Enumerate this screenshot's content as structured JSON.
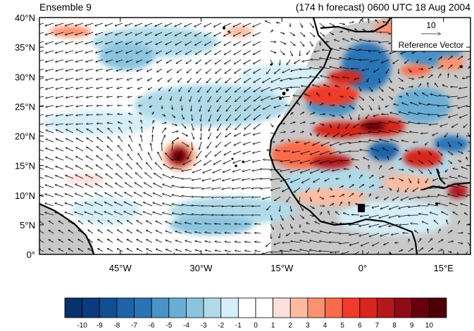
{
  "title": {
    "left": "Ensemble 9",
    "right": "(174 h forecast) 0600 UTC 18 Aug 2004"
  },
  "map": {
    "lon_range": [
      -60,
      20
    ],
    "lat_range": [
      0,
      40
    ],
    "lat_labels": [
      "0°",
      "5°N",
      "10°N",
      "15°N",
      "20°N",
      "25°N",
      "30°N",
      "35°N",
      "40°N"
    ],
    "lon_labels": [
      "45°W",
      "30°W",
      "15°W",
      "0°",
      "15°E"
    ],
    "land_color": "#c8c8c8",
    "coast_color": "#000000"
  },
  "reference_vector": {
    "magnitude": "10",
    "label": "Reference Vector"
  },
  "colorbar": {
    "labels": [
      "-10",
      "-9",
      "-8",
      "-7",
      "-6",
      "-5",
      "-4",
      "-3",
      "-2",
      "-1",
      "0",
      "1",
      "2",
      "3",
      "4",
      "5",
      "6",
      "7",
      "8",
      "9",
      "10"
    ],
    "colors": [
      "#08306b",
      "#0b3a7e",
      "#104f94",
      "#1d63a8",
      "#2a74b6",
      "#4a92c6",
      "#6aaed6",
      "#8cc4de",
      "#b1dae9",
      "#d5eef7",
      "#ffffff",
      "#ffffff",
      "#fde0dd",
      "#fcbba1",
      "#fc9272",
      "#fb6a4a",
      "#ef3b2c",
      "#d7261f",
      "#b5181b",
      "#8e0d14",
      "#67000d",
      "#4c0007"
    ]
  },
  "features": {
    "cyclone": {
      "label": "",
      "lon": -34,
      "lat": 17.5
    }
  }
}
